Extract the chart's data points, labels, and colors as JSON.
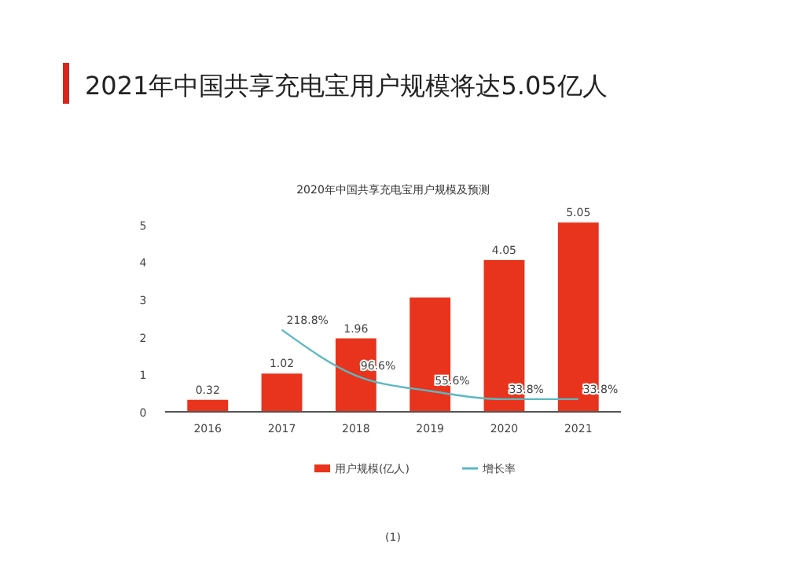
{
  "chart_data": {
    "type": "bar",
    "title": "2021年中国共享充电宝用户规模将达5.05亿人",
    "subtitle": "2020年中国共享充电宝用户规模及预测",
    "categories": [
      "2016",
      "2017",
      "2018",
      "2019",
      "2020",
      "2021"
    ],
    "series": [
      {
        "name": "用户规模(亿人)",
        "color": "#e8341c",
        "values": [
          0.32,
          1.02,
          1.96,
          3.05,
          4.05,
          5.05
        ],
        "value_labels": [
          "0.32",
          "1.02",
          "1.96",
          null,
          "4.05",
          "5.05"
        ]
      },
      {
        "name": "增长率",
        "type": "line",
        "axis": "y2",
        "color": "#5bb8c4",
        "values": [
          null,
          218.8,
          96.6,
          55.6,
          33.8,
          33.8
        ],
        "value_labels": [
          null,
          "218.8%",
          "96.6%",
          "55.6%",
          "33.8%",
          "33.8%"
        ]
      }
    ],
    "ylim": [
      0,
      5.2
    ],
    "yticks": [
      0,
      1,
      2,
      3,
      4,
      5
    ],
    "y2lim": [
      0,
      520
    ],
    "tick_labels": "xy",
    "grid": false,
    "legend": "bottom",
    "marker": "none",
    "annotations": [
      "(1)"
    ]
  }
}
